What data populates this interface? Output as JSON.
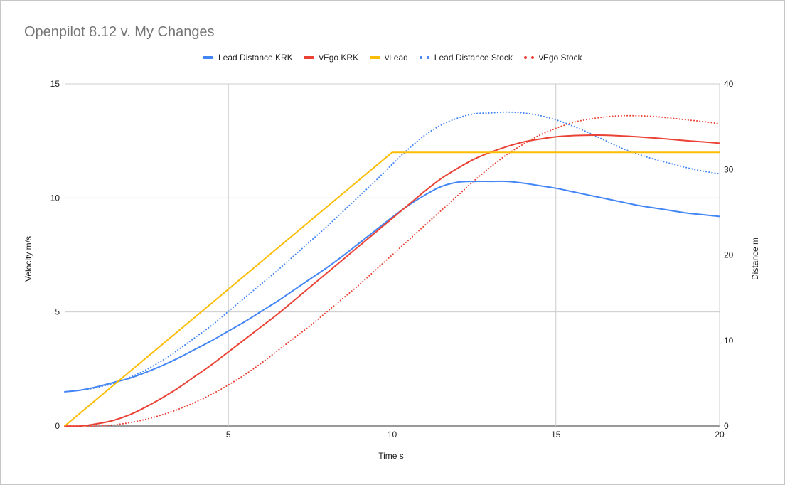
{
  "chart_data": {
    "type": "line",
    "title": "Openpilot 8.12 v. My Changes",
    "xlabel": "Time s",
    "ylabel_left": "Velocity m/s",
    "ylabel_right": "Distance m",
    "xlim": [
      0,
      20
    ],
    "ylim_left": [
      0,
      15
    ],
    "ylim_right": [
      0,
      40
    ],
    "x_ticks": [
      "5",
      "10",
      "15",
      "20"
    ],
    "y_left_ticks": [
      "0",
      "5",
      "10",
      "15"
    ],
    "y_right_ticks": [
      "0",
      "10",
      "20",
      "30",
      "40"
    ],
    "grid": true,
    "legend_position": "top",
    "x": [
      0,
      0.5,
      1,
      1.5,
      2,
      2.5,
      3,
      3.5,
      4,
      4.5,
      5,
      5.5,
      6,
      6.5,
      7,
      7.5,
      8,
      8.5,
      9,
      9.5,
      10,
      10.5,
      11,
      11.5,
      12,
      12.5,
      13,
      13.5,
      14,
      14.5,
      15,
      15.5,
      16,
      16.5,
      17,
      17.5,
      18,
      18.5,
      19,
      19.5,
      20
    ],
    "series": [
      {
        "name": "Lead Distance KRK",
        "axis": "right",
        "style": "solid",
        "color": "#4285f4",
        "values": [
          4.0,
          4.2,
          4.6,
          5.1,
          5.6,
          6.3,
          7.1,
          8.0,
          9.0,
          10.0,
          11.1,
          12.2,
          13.4,
          14.6,
          15.9,
          17.2,
          18.5,
          19.9,
          21.4,
          22.9,
          24.4,
          25.8,
          27.0,
          28.0,
          28.5,
          28.6,
          28.6,
          28.6,
          28.4,
          28.1,
          27.8,
          27.4,
          27.0,
          26.6,
          26.2,
          25.8,
          25.5,
          25.2,
          24.9,
          24.7,
          24.5
        ]
      },
      {
        "name": "vEgo KRK",
        "axis": "left",
        "style": "solid",
        "color": "#ea4335",
        "values": [
          0.0,
          0.0,
          0.1,
          0.25,
          0.5,
          0.85,
          1.25,
          1.7,
          2.2,
          2.7,
          3.25,
          3.8,
          4.35,
          4.9,
          5.5,
          6.1,
          6.7,
          7.3,
          7.9,
          8.5,
          9.1,
          9.7,
          10.3,
          10.85,
          11.3,
          11.7,
          12.0,
          12.25,
          12.45,
          12.58,
          12.68,
          12.73,
          12.75,
          12.75,
          12.72,
          12.68,
          12.63,
          12.57,
          12.51,
          12.46,
          12.4
        ]
      },
      {
        "name": "vLead",
        "axis": "left",
        "style": "solid",
        "color": "#fbbc04",
        "values": [
          0.0,
          0.6,
          1.2,
          1.8,
          2.4,
          3.0,
          3.6,
          4.2,
          4.8,
          5.4,
          6.0,
          6.6,
          7.2,
          7.8,
          8.4,
          9.0,
          9.6,
          10.2,
          10.8,
          11.4,
          12.0,
          12.0,
          12.0,
          12.0,
          12.0,
          12.0,
          12.0,
          12.0,
          12.0,
          12.0,
          12.0,
          12.0,
          12.0,
          12.0,
          12.0,
          12.0,
          12.0,
          12.0,
          12.0,
          12.0,
          12.0
        ]
      },
      {
        "name": "Lead Distance Stock",
        "axis": "right",
        "style": "dotted",
        "color": "#4285f4",
        "values": [
          4.0,
          4.2,
          4.5,
          5.0,
          5.7,
          6.6,
          7.7,
          9.0,
          10.4,
          11.8,
          13.4,
          15.0,
          16.6,
          18.2,
          19.9,
          21.6,
          23.3,
          25.1,
          26.9,
          28.7,
          30.6,
          32.4,
          34.0,
          35.2,
          36.0,
          36.5,
          36.6,
          36.7,
          36.6,
          36.3,
          35.8,
          35.1,
          34.3,
          33.4,
          32.5,
          31.8,
          31.2,
          30.7,
          30.2,
          29.8,
          29.5
        ]
      },
      {
        "name": "vEgo Stock",
        "axis": "left",
        "style": "dotted",
        "color": "#ea4335",
        "values": [
          0.0,
          0.0,
          0.0,
          0.05,
          0.15,
          0.3,
          0.5,
          0.75,
          1.05,
          1.4,
          1.8,
          2.25,
          2.75,
          3.3,
          3.85,
          4.4,
          5.0,
          5.6,
          6.2,
          6.85,
          7.5,
          8.15,
          8.8,
          9.45,
          10.1,
          10.75,
          11.35,
          11.9,
          12.35,
          12.75,
          13.05,
          13.3,
          13.45,
          13.55,
          13.6,
          13.6,
          13.57,
          13.5,
          13.42,
          13.35,
          13.25
        ]
      }
    ]
  }
}
